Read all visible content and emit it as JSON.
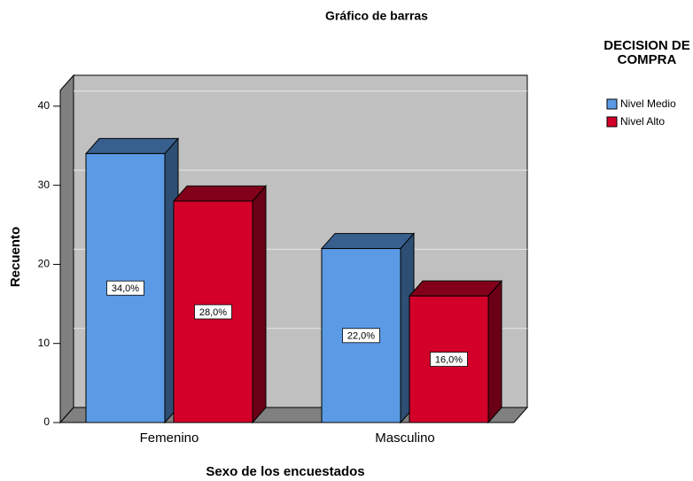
{
  "chart_data": {
    "type": "bar",
    "title": "Gráfico de barras",
    "x_label": "Sexo de los encuestados",
    "y_label": "Recuento",
    "categories": [
      "Femenino",
      "Masculino"
    ],
    "series": [
      {
        "name": "Nivel Medio",
        "color": "#5b9be6",
        "values": [
          34,
          22
        ],
        "value_labels": [
          "34,0%",
          "22,0%"
        ]
      },
      {
        "name": "Nivel Alto",
        "color": "#d3002a",
        "values": [
          28,
          16
        ],
        "value_labels": [
          "28,0%",
          "16,0%"
        ]
      }
    ],
    "legend_title": "DECISION DE COMPRA",
    "legend_position": "upper right",
    "ylim": [
      0,
      42
    ],
    "yticks": [
      0,
      10,
      20,
      30,
      40
    ],
    "grid": true
  }
}
